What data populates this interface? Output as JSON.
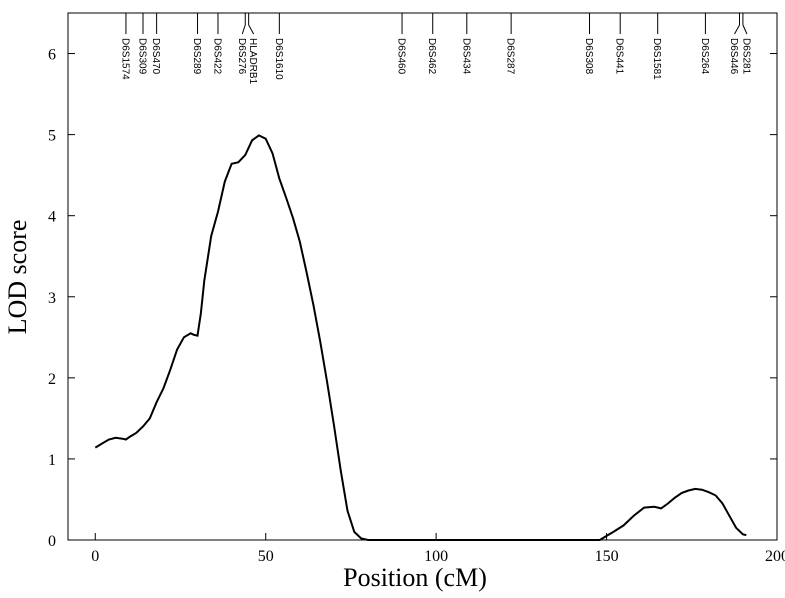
{
  "chart_data": {
    "type": "line",
    "xlabel": "Position (cM)",
    "ylabel": "LOD score",
    "xlim": [
      -8,
      200
    ],
    "ylim": [
      0,
      6.5
    ],
    "xticks": [
      0,
      50,
      100,
      150,
      200
    ],
    "yticks": [
      0,
      1,
      2,
      3,
      4,
      5,
      6
    ],
    "grid": false,
    "series": [
      {
        "x": [
          0,
          2,
          4,
          6,
          8,
          9,
          10,
          12,
          14,
          16,
          18,
          20,
          22,
          24,
          26,
          28,
          29,
          30,
          31,
          32,
          34,
          36,
          38,
          40,
          42,
          44,
          46,
          48,
          50,
          52,
          54,
          56,
          58,
          60,
          62,
          64,
          66,
          68,
          70,
          72,
          74,
          76,
          78,
          80,
          85,
          100,
          120,
          140,
          148,
          150,
          152,
          155,
          158,
          161,
          164,
          166,
          168,
          170,
          172,
          174,
          176,
          178,
          180,
          182,
          184,
          186,
          188,
          190,
          191
        ],
        "y": [
          1.14,
          1.19,
          1.24,
          1.26,
          1.25,
          1.24,
          1.27,
          1.32,
          1.4,
          1.5,
          1.7,
          1.87,
          2.1,
          2.35,
          2.5,
          2.55,
          2.53,
          2.52,
          2.8,
          3.2,
          3.75,
          4.05,
          4.42,
          4.64,
          4.66,
          4.75,
          4.93,
          4.99,
          4.95,
          4.77,
          4.46,
          4.22,
          3.97,
          3.68,
          3.3,
          2.9,
          2.45,
          1.95,
          1.42,
          0.86,
          0.36,
          0.1,
          0.02,
          0,
          0,
          0,
          0,
          0,
          0,
          0.05,
          0.1,
          0.18,
          0.3,
          0.4,
          0.41,
          0.39,
          0.45,
          0.52,
          0.58,
          0.61,
          0.63,
          0.62,
          0.59,
          0.55,
          0.45,
          0.3,
          0.15,
          0.07,
          0.06
        ]
      }
    ],
    "markers": [
      {
        "label": "D6S1574",
        "pos": 9
      },
      {
        "label": "D6S309",
        "pos": 14
      },
      {
        "label": "D6S470",
        "pos": 18
      },
      {
        "label": "D6S289",
        "pos": 30
      },
      {
        "label": "D6S422",
        "pos": 36
      },
      {
        "label": "D6S276",
        "pos": 44
      },
      {
        "label": "HLADRB1",
        "pos": 45
      },
      {
        "label": "D6S1610",
        "pos": 54
      },
      {
        "label": "D6S460",
        "pos": 90
      },
      {
        "label": "D6S462",
        "pos": 99
      },
      {
        "label": "D6S434",
        "pos": 109
      },
      {
        "label": "D6S287",
        "pos": 122
      },
      {
        "label": "D6S308",
        "pos": 145
      },
      {
        "label": "D6S441",
        "pos": 154
      },
      {
        "label": "D6S1581",
        "pos": 165
      },
      {
        "label": "D6S264",
        "pos": 179
      },
      {
        "label": "D6S446",
        "pos": 189
      },
      {
        "label": "D6S281",
        "pos": 190
      }
    ]
  }
}
